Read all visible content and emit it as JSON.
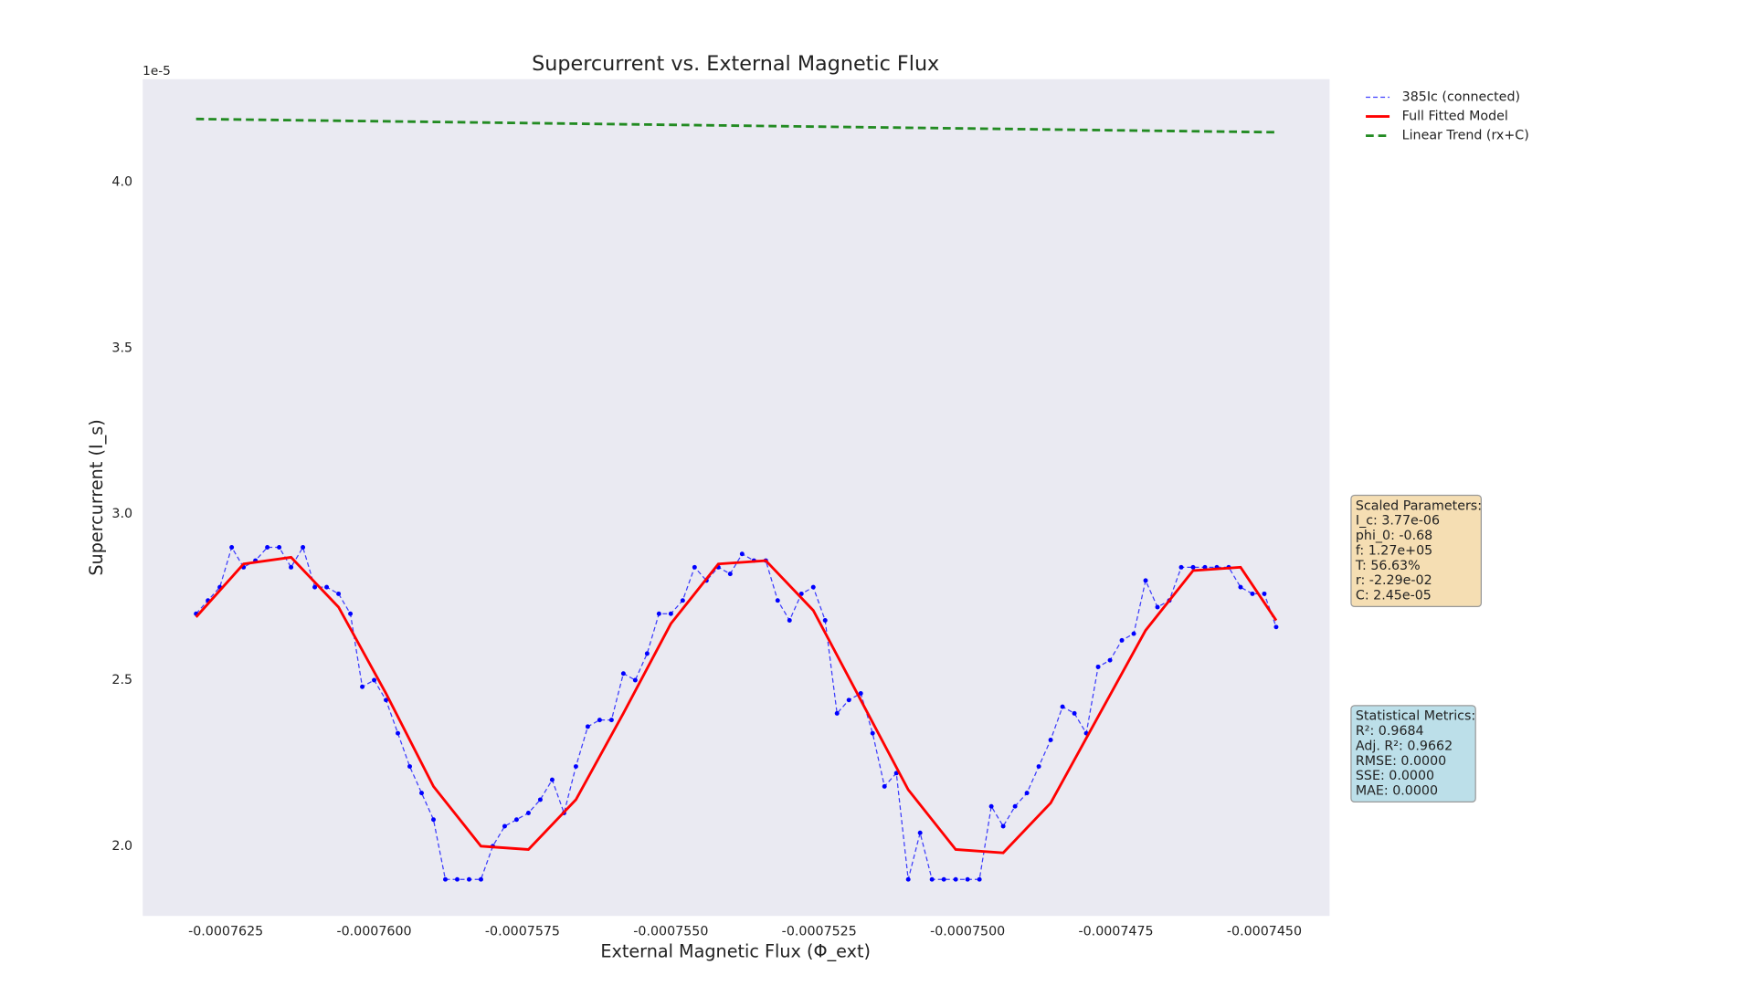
{
  "chart_data": {
    "type": "line",
    "title": "Supercurrent vs. External Magnetic Flux",
    "x_label": "External Magnetic Flux (Φ_ext)",
    "y_label": "Supercurrent (I_s)",
    "y_offset_text": "1e-5",
    "xlim": [
      -0.0007639,
      -0.0007439
    ],
    "ylim": [
      1.79,
      4.31
    ],
    "xticks": [
      -0.0007625,
      {
        "value": -0.00076,
        "label": "-0.0007600"
      },
      -0.0007575,
      {
        "value": -0.000755,
        "label": "-0.0007550"
      },
      -0.0007525,
      {
        "value": -0.00075,
        "label": "-0.0007500"
      },
      -0.0007475,
      {
        "value": -0.000745,
        "label": "-0.0007450"
      }
    ],
    "yticks": [
      {
        "value": 2,
        "label": "2.0"
      },
      2.5,
      {
        "value": 3,
        "label": "3.0"
      },
      3.5,
      {
        "value": 4,
        "label": "4.0"
      }
    ],
    "grid": false,
    "legend": "outside-upper-right",
    "series": [
      {
        "name": "385Ic (connected)",
        "color": "#0000ff",
        "linestyle": "dashed",
        "marker": true,
        "x": [
          -0.000763,
          -0.0007628,
          -0.0007626,
          -0.0007624,
          -0.0007622,
          -0.000762,
          -0.0007618,
          -0.0007616,
          -0.0007614,
          -0.0007612,
          -0.000761,
          -0.0007608,
          -0.0007606,
          -0.0007604,
          -0.0007602,
          -0.00076,
          -0.0007598,
          -0.0007596,
          -0.0007594,
          -0.0007592,
          -0.000759,
          -0.0007588,
          -0.0007586,
          -0.0007584,
          -0.0007582,
          -0.000758,
          -0.0007578,
          -0.0007576,
          -0.0007574,
          -0.0007572,
          -0.000757,
          -0.0007568,
          -0.0007566,
          -0.0007564,
          -0.0007562,
          -0.000756,
          -0.0007558,
          -0.0007556,
          -0.0007554,
          -0.0007552,
          -0.000755,
          -0.0007548,
          -0.0007546,
          -0.0007544,
          -0.0007542,
          -0.000754,
          -0.0007538,
          -0.0007536,
          -0.0007534,
          -0.0007532,
          -0.000753,
          -0.0007528,
          -0.0007526,
          -0.0007524,
          -0.0007522,
          -0.000752,
          -0.0007518,
          -0.0007516,
          -0.0007514,
          -0.0007512,
          -0.000751,
          -0.0007508,
          -0.0007506,
          -0.0007504,
          -0.0007502,
          -0.00075,
          -0.0007498,
          -0.0007496,
          -0.0007494,
          -0.0007492,
          -0.000749,
          -0.0007488,
          -0.0007486,
          -0.0007484,
          -0.0007482,
          -0.000748,
          -0.0007478,
          -0.0007476,
          -0.0007474,
          -0.0007472,
          -0.000747,
          -0.0007468,
          -0.0007466,
          -0.0007464,
          -0.0007462,
          -0.000746,
          -0.0007458,
          -0.0007456,
          -0.0007454,
          -0.0007452,
          -0.000745,
          -0.0007448
        ],
        "values": [
          2.7,
          2.74,
          2.78,
          2.9,
          2.84,
          2.86,
          2.9,
          2.9,
          2.84,
          2.9,
          2.78,
          2.78,
          2.76,
          2.7,
          2.48,
          2.5,
          2.44,
          2.34,
          2.24,
          2.16,
          2.08,
          1.9,
          1.9,
          1.9,
          1.9,
          2.0,
          2.06,
          2.08,
          2.1,
          2.14,
          2.2,
          2.1,
          2.24,
          2.36,
          2.38,
          2.38,
          2.52,
          2.5,
          2.58,
          2.7,
          2.7,
          2.74,
          2.84,
          2.8,
          2.84,
          2.82,
          2.88,
          2.86,
          2.86,
          2.74,
          2.68,
          2.76,
          2.78,
          2.68,
          2.4,
          2.44,
          2.46,
          2.34,
          2.18,
          2.22,
          1.9,
          2.04,
          1.9,
          1.9,
          1.9,
          1.9,
          1.9,
          2.12,
          2.06,
          2.12,
          2.16,
          2.24,
          2.32,
          2.42,
          2.4,
          2.34,
          2.54,
          2.56,
          2.62,
          2.64,
          2.8,
          2.72,
          2.74,
          2.84,
          2.84,
          2.84,
          2.84,
          2.84,
          2.78,
          2.76,
          2.76,
          2.66
        ]
      },
      {
        "name": "Full Fitted Model",
        "color": "#ff0000",
        "linestyle": "solid",
        "marker": false,
        "x": [
          -0.000763,
          -0.0007622,
          -0.0007614,
          -0.0007606,
          -0.0007598,
          -0.000759,
          -0.0007582,
          -0.0007574,
          -0.0007566,
          -0.0007558,
          -0.000755,
          -0.0007542,
          -0.0007534,
          -0.0007526,
          -0.0007518,
          -0.000751,
          -0.0007502,
          -0.0007494,
          -0.0007486,
          -0.0007478,
          -0.000747,
          -0.0007462,
          -0.0007454,
          -0.0007448
        ],
        "values": [
          2.69,
          2.85,
          2.87,
          2.72,
          2.46,
          2.18,
          2.0,
          1.99,
          2.14,
          2.4,
          2.67,
          2.85,
          2.86,
          2.71,
          2.44,
          2.17,
          1.99,
          1.98,
          2.13,
          2.39,
          2.65,
          2.83,
          2.84,
          2.68
        ]
      },
      {
        "name": "Linear Trend (rx+C)",
        "color": "#228b22",
        "linestyle": "dashed-thick",
        "marker": false,
        "x": [
          -0.000763,
          -0.0007448
        ],
        "values": [
          4.19,
          4.15
        ]
      }
    ],
    "parameter_box": {
      "title": "Scaled Parameters:",
      "lines": [
        "I_c: 3.77e-06",
        "phi_0: -0.68",
        "f: 1.27e+05",
        "T: 56.63%",
        "r: -2.29e-02",
        "C: 2.45e-05"
      ],
      "color": "#f5deb3"
    },
    "metrics_box": {
      "title": "Statistical Metrics:",
      "lines": [
        "R²: 0.9684",
        "Adj. R²: 0.9662",
        "RMSE: 0.0000",
        "SSE: 0.0000",
        "MAE: 0.0000"
      ],
      "color": "#bcdfe9"
    }
  }
}
